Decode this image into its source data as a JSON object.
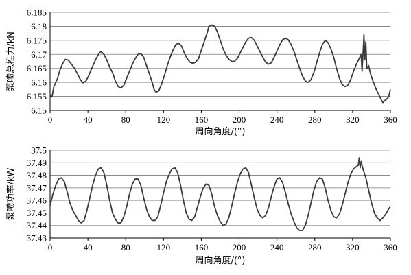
{
  "chart_data": [
    {
      "type": "line",
      "ylabel": "泵喷总推力/kN",
      "xlabel": "周向角度/(°)",
      "xlim": [
        0,
        360
      ],
      "ylim": [
        6.15,
        6.185
      ],
      "xticks": [
        "0",
        "40",
        "80",
        "120",
        "160",
        "200",
        "240",
        "280",
        "320",
        "360"
      ],
      "yticks": [
        "6.15",
        "6.155",
        "6.16",
        "6.165",
        "6.17",
        "6.175",
        "6.18",
        "6.185"
      ],
      "grid": "horizontal",
      "series": [
        {
          "values": [
            [
              0,
              6.1555
            ],
            [
              2,
              6.1548
            ],
            [
              4,
              6.1585
            ],
            [
              6,
              6.16
            ],
            [
              8,
              6.1615
            ],
            [
              10,
              6.164
            ],
            [
              13,
              6.1665
            ],
            [
              16,
              6.1682
            ],
            [
              19,
              6.168
            ],
            [
              22,
              6.1668
            ],
            [
              26,
              6.165
            ],
            [
              29,
              6.163
            ],
            [
              32,
              6.161
            ],
            [
              35,
              6.1598
            ],
            [
              38,
              6.1605
            ],
            [
              41,
              6.1625
            ],
            [
              44,
              6.165
            ],
            [
              48,
              6.168
            ],
            [
              52,
              6.1705
            ],
            [
              54,
              6.171
            ],
            [
              57,
              6.17
            ],
            [
              60,
              6.168
            ],
            [
              63,
              6.1655
            ],
            [
              66,
              6.1635
            ],
            [
              69,
              6.1605
            ],
            [
              72,
              6.1585
            ],
            [
              75,
              6.158
            ],
            [
              78,
              6.159
            ],
            [
              81,
              6.1615
            ],
            [
              84,
              6.164
            ],
            [
              87,
              6.1665
            ],
            [
              90,
              6.1685
            ],
            [
              93,
              6.17
            ],
            [
              96,
              6.1703
            ],
            [
              99,
              6.169
            ],
            [
              102,
              6.166
            ],
            [
              105,
              6.163
            ],
            [
              108,
              6.16
            ],
            [
              110,
              6.1575
            ],
            [
              112,
              6.1565
            ],
            [
              115,
              6.157
            ],
            [
              118,
              6.1595
            ],
            [
              121,
              6.1625
            ],
            [
              124,
              6.166
            ],
            [
              127,
              6.169
            ],
            [
              130,
              6.1715
            ],
            [
              133,
              6.1735
            ],
            [
              136,
              6.174
            ],
            [
              139,
              6.173
            ],
            [
              142,
              6.1705
            ],
            [
              145,
              6.1685
            ],
            [
              148,
              6.1672
            ],
            [
              151,
              6.1668
            ],
            [
              154,
              6.1672
            ],
            [
              157,
              6.1685
            ],
            [
              160,
              6.1715
            ],
            [
              163,
              6.1745
            ],
            [
              166,
              6.1775
            ],
            [
              168,
              6.18
            ],
            [
              171,
              6.1805
            ],
            [
              174,
              6.18
            ],
            [
              177,
              6.178
            ],
            [
              180,
              6.175
            ],
            [
              183,
              6.172
            ],
            [
              186,
              6.1698
            ],
            [
              189,
              6.1683
            ],
            [
              192,
              6.1675
            ],
            [
              195,
              6.1675
            ],
            [
              198,
              6.1685
            ],
            [
              201,
              6.1705
            ],
            [
              204,
              6.1725
            ],
            [
              207,
              6.1745
            ],
            [
              210,
              6.1758
            ],
            [
              213,
              6.176
            ],
            [
              216,
              6.175
            ],
            [
              219,
              6.173
            ],
            [
              222,
              6.171
            ],
            [
              225,
              6.169
            ],
            [
              228,
              6.1672
            ],
            [
              231,
              6.1665
            ],
            [
              234,
              6.167
            ],
            [
              237,
              6.169
            ],
            [
              240,
              6.1712
            ],
            [
              243,
              6.1735
            ],
            [
              246,
              6.1752
            ],
            [
              249,
              6.1758
            ],
            [
              252,
              6.1752
            ],
            [
              255,
              6.1735
            ],
            [
              258,
              6.171
            ],
            [
              261,
              6.168
            ],
            [
              264,
              6.165
            ],
            [
              267,
              6.1622
            ],
            [
              270,
              6.1605
            ],
            [
              273,
              6.16
            ],
            [
              276,
              6.161
            ],
            [
              279,
              6.1635
            ],
            [
              282,
              6.167
            ],
            [
              285,
              6.1705
            ],
            [
              288,
              6.1735
            ],
            [
              291,
              6.175
            ],
            [
              294,
              6.1742
            ],
            [
              297,
              6.172
            ],
            [
              300,
              6.169
            ],
            [
              303,
              6.165
            ],
            [
              306,
              6.1615
            ],
            [
              309,
              6.1592
            ],
            [
              312,
              6.1585
            ],
            [
              315,
              6.159
            ],
            [
              318,
              6.161
            ],
            [
              321,
              6.164
            ],
            [
              324,
              6.1665
            ],
            [
              327,
              6.1685
            ],
            [
              329,
              6.17
            ],
            [
              330,
              6.164
            ],
            [
              331,
              6.17
            ],
            [
              332,
              6.177
            ],
            [
              333,
              6.168
            ],
            [
              334,
              6.1745
            ],
            [
              335,
              6.165
            ],
            [
              337,
              6.166
            ],
            [
              339,
              6.163
            ],
            [
              342,
              6.16
            ],
            [
              345,
              6.1575
            ],
            [
              348,
              6.1555
            ],
            [
              350,
              6.154
            ],
            [
              352,
              6.1528
            ],
            [
              354,
              6.1535
            ],
            [
              356,
              6.154
            ],
            [
              358,
              6.1548
            ],
            [
              360,
              6.1575
            ]
          ]
        }
      ]
    },
    {
      "type": "line",
      "ylabel": "泵喷功率/kW",
      "xlabel": "周向角度/(°)",
      "xlim": [
        0,
        360
      ],
      "ylim": [
        37.43,
        37.5
      ],
      "xticks": [
        "0",
        "40",
        "80",
        "120",
        "160",
        "200",
        "240",
        "280",
        "320",
        "360"
      ],
      "yticks": [
        "37.43",
        "37.44",
        "37.45",
        "37.46",
        "37.47",
        "37.48",
        "37.49",
        "37.5"
      ],
      "grid": "horizontal",
      "series": [
        {
          "values": [
            [
              0,
              37.456
            ],
            [
              3,
              37.465
            ],
            [
              6,
              37.472
            ],
            [
              9,
              37.477
            ],
            [
              12,
              37.478
            ],
            [
              15,
              37.475
            ],
            [
              18,
              37.467
            ],
            [
              21,
              37.458
            ],
            [
              24,
              37.452
            ],
            [
              27,
              37.448
            ],
            [
              30,
              37.444
            ],
            [
              33,
              37.442
            ],
            [
              36,
              37.444
            ],
            [
              39,
              37.452
            ],
            [
              42,
              37.462
            ],
            [
              45,
              37.472
            ],
            [
              48,
              37.48
            ],
            [
              51,
              37.485
            ],
            [
              54,
              37.486
            ],
            [
              57,
              37.482
            ],
            [
              60,
              37.472
            ],
            [
              63,
              37.46
            ],
            [
              66,
              37.45
            ],
            [
              69,
              37.445
            ],
            [
              72,
              37.442
            ],
            [
              75,
              37.442
            ],
            [
              78,
              37.447
            ],
            [
              81,
              37.455
            ],
            [
              84,
              37.465
            ],
            [
              87,
              37.473
            ],
            [
              90,
              37.477
            ],
            [
              93,
              37.477
            ],
            [
              96,
              37.472
            ],
            [
              99,
              37.462
            ],
            [
              102,
              37.453
            ],
            [
              105,
              37.447
            ],
            [
              108,
              37.444
            ],
            [
              111,
              37.444
            ],
            [
              114,
              37.447
            ],
            [
              117,
              37.456
            ],
            [
              120,
              37.466
            ],
            [
              123,
              37.475
            ],
            [
              126,
              37.481
            ],
            [
              129,
              37.485
            ],
            [
              132,
              37.486
            ],
            [
              135,
              37.482
            ],
            [
              138,
              37.472
            ],
            [
              141,
              37.46
            ],
            [
              144,
              37.45
            ],
            [
              147,
              37.445
            ],
            [
              150,
              37.444
            ],
            [
              153,
              37.447
            ],
            [
              156,
              37.455
            ],
            [
              159,
              37.463
            ],
            [
              162,
              37.47
            ],
            [
              165,
              37.473
            ],
            [
              168,
              37.472
            ],
            [
              171,
              37.465
            ],
            [
              174,
              37.455
            ],
            [
              177,
              37.448
            ],
            [
              180,
              37.443
            ],
            [
              183,
              37.44
            ],
            [
              186,
              37.441
            ],
            [
              189,
              37.446
            ],
            [
              192,
              37.455
            ],
            [
              195,
              37.465
            ],
            [
              198,
              37.474
            ],
            [
              201,
              37.481
            ],
            [
              204,
              37.485
            ],
            [
              207,
              37.486
            ],
            [
              210,
              37.482
            ],
            [
              213,
              37.472
            ],
            [
              216,
              37.462
            ],
            [
              219,
              37.453
            ],
            [
              222,
              37.448
            ],
            [
              225,
              37.446
            ],
            [
              228,
              37.448
            ],
            [
              231,
              37.454
            ],
            [
              234,
              37.463
            ],
            [
              237,
              37.471
            ],
            [
              240,
              37.477
            ],
            [
              243,
              37.478
            ],
            [
              246,
              37.474
            ],
            [
              249,
              37.466
            ],
            [
              252,
              37.457
            ],
            [
              255,
              37.449
            ],
            [
              258,
              37.443
            ],
            [
              261,
              37.438
            ],
            [
              264,
              37.436
            ],
            [
              267,
              37.436
            ],
            [
              270,
              37.44
            ],
            [
              273,
              37.448
            ],
            [
              276,
              37.458
            ],
            [
              279,
              37.468
            ],
            [
              282,
              37.475
            ],
            [
              285,
              37.478
            ],
            [
              288,
              37.477
            ],
            [
              291,
              37.47
            ],
            [
              294,
              37.46
            ],
            [
              297,
              37.452
            ],
            [
              300,
              37.447
            ],
            [
              303,
              37.446
            ],
            [
              306,
              37.449
            ],
            [
              309,
              37.456
            ],
            [
              312,
              37.465
            ],
            [
              315,
              37.474
            ],
            [
              318,
              37.481
            ],
            [
              321,
              37.485
            ],
            [
              324,
              37.487
            ],
            [
              326,
              37.488
            ],
            [
              327,
              37.494
            ],
            [
              328,
              37.486
            ],
            [
              329,
              37.491
            ],
            [
              331,
              37.485
            ],
            [
              334,
              37.478
            ],
            [
              337,
              37.468
            ],
            [
              340,
              37.458
            ],
            [
              343,
              37.45
            ],
            [
              346,
              37.446
            ],
            [
              349,
              37.444
            ],
            [
              352,
              37.446
            ],
            [
              355,
              37.449
            ],
            [
              358,
              37.453
            ],
            [
              360,
              37.455
            ]
          ]
        }
      ]
    }
  ]
}
